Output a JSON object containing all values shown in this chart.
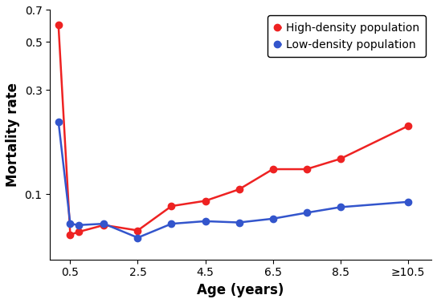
{
  "x_positions": [
    0.15,
    0.5,
    0.75,
    1.5,
    2.5,
    3.5,
    4.5,
    5.5,
    6.5,
    7.5,
    8.5,
    10.5
  ],
  "x_axis_ticks": [
    0.5,
    2.5,
    4.5,
    6.5,
    8.5,
    10.5
  ],
  "x_axis_tick_labels": [
    "0.5",
    "2.5",
    "4.5",
    "6.5",
    "8.5",
    "≥10.5"
  ],
  "high_density_y": [
    0.6,
    0.065,
    0.067,
    0.072,
    0.068,
    0.088,
    0.093,
    0.105,
    0.13,
    0.13,
    0.145,
    0.205
  ],
  "low_density_y": [
    0.215,
    0.073,
    0.072,
    0.073,
    0.063,
    0.073,
    0.075,
    0.074,
    0.077,
    0.082,
    0.087,
    0.092
  ],
  "high_color": "#ee2222",
  "low_color": "#3355cc",
  "high_label": "High-density population",
  "low_label": "Low-density population",
  "xlabel": "Age (years)",
  "ylabel": "Mortality rate",
  "ylim": [
    0.05,
    0.7
  ],
  "yticks": [
    0.1,
    0.3,
    0.5,
    0.7
  ],
  "yticklabels": [
    "0.1",
    "0.3",
    "0.5",
    "0.7"
  ],
  "xlim": [
    -0.1,
    11.2
  ],
  "marker_size": 6,
  "linewidth": 1.8,
  "legend_fontsize": 10,
  "axis_label_fontsize": 12,
  "tick_fontsize": 10
}
